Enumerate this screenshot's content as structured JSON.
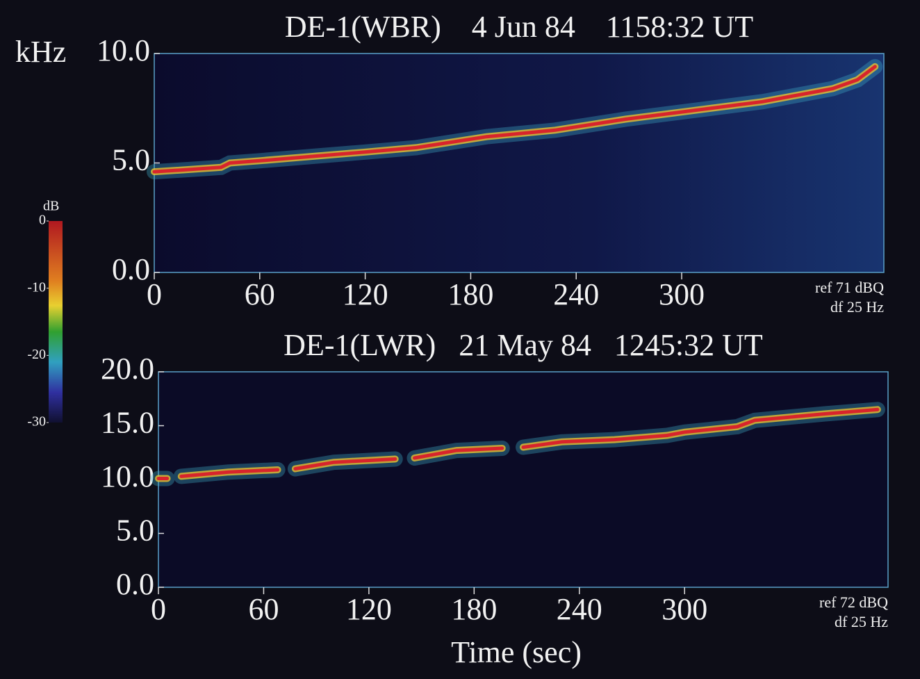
{
  "chart_data": [
    {
      "type": "line",
      "title": "DE-1(WBR)    4 Jun 84    1158:32 UT",
      "ylabel": "kHz",
      "x": [
        0,
        20,
        38,
        43,
        60,
        90,
        120,
        149,
        189,
        228,
        268,
        307,
        346,
        386,
        400,
        410
      ],
      "values": [
        4.6,
        4.7,
        4.8,
        5.0,
        5.1,
        5.3,
        5.5,
        5.7,
        6.2,
        6.5,
        7.0,
        7.4,
        7.8,
        8.4,
        8.8,
        9.4
      ],
      "color": "#d8242c",
      "xlim": [
        0,
        415
      ],
      "xticks": [
        0,
        60,
        120,
        180,
        240,
        300
      ],
      "ylim": [
        0,
        10
      ],
      "yticks": [
        {
          "value": 0,
          "label": "0.0"
        },
        {
          "value": 5,
          "label": "5.0"
        },
        {
          "value": 10,
          "label": "10.0"
        }
      ],
      "annotations": [
        "ref 71 dBQ",
        "df 25 Hz"
      ],
      "colorbar": {
        "label": "dB",
        "lim": [
          0,
          -30
        ],
        "ticks": [
          0,
          -10,
          -20,
          -30
        ]
      }
    },
    {
      "type": "line",
      "title": "DE-1(LWR)   21 May 84   1245:32 UT",
      "xlabel": "Time (sec)",
      "x": [
        0,
        5,
        9,
        13,
        40,
        68,
        73,
        78,
        100,
        135,
        140,
        146,
        170,
        196,
        202,
        208,
        230,
        260,
        290,
        300,
        330,
        340,
        380,
        410
      ],
      "values": [
        10.1,
        10.1,
        null,
        10.3,
        10.7,
        10.9,
        null,
        11.0,
        11.6,
        11.9,
        null,
        12.0,
        12.7,
        12.9,
        null,
        13.0,
        13.5,
        13.7,
        14.1,
        14.4,
        14.9,
        15.5,
        16.1,
        16.5
      ],
      "color": "#d8242c",
      "xlim": [
        0,
        416
      ],
      "xticks": [
        0,
        60,
        120,
        180,
        240,
        300
      ],
      "ylim": [
        0,
        20
      ],
      "yticks": [
        {
          "value": 0,
          "label": "0.0"
        },
        {
          "value": 5,
          "label": "5.0"
        },
        {
          "value": 10,
          "label": "10.0"
        },
        {
          "value": 15,
          "label": "15.0"
        },
        {
          "value": 20,
          "label": "20.0"
        }
      ],
      "annotations": [
        "ref 72 dBQ",
        "df 25 Hz"
      ]
    }
  ]
}
